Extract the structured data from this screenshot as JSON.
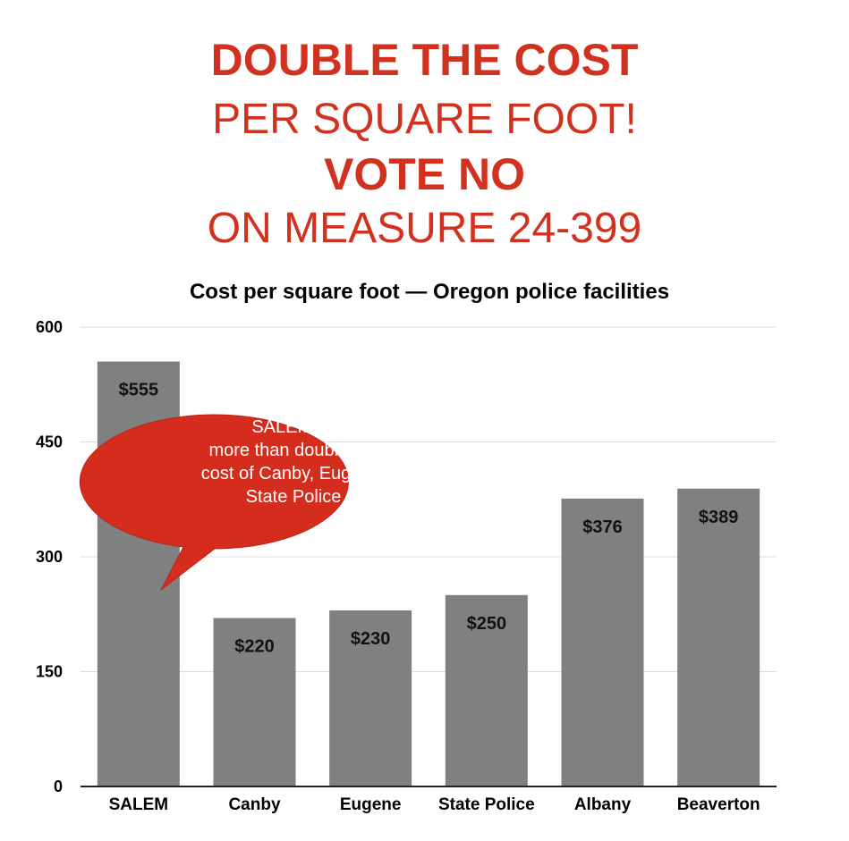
{
  "headline": {
    "line1": "DOUBLE THE COST",
    "line2": "PER SQUARE FOOT!",
    "line3": "VOTE NO",
    "line4": "ON MEASURE 24-399"
  },
  "callout": {
    "lines": [
      "SALEM —",
      "more than double the",
      "cost of Canby, Eugene,",
      "State Police"
    ]
  },
  "colors": {
    "headline": "#d1321f",
    "bar": "#7f8180",
    "callout": "#d42d1e",
    "gridline": "#dcdcdc"
  },
  "chart_data": {
    "type": "bar",
    "title": "Cost per square foot — Oregon police facilities",
    "categories": [
      "SALEM",
      "Canby",
      "Eugene",
      "State Police",
      "Albany",
      "Beaverton"
    ],
    "values": [
      555,
      220,
      230,
      250,
      376,
      389
    ],
    "data_labels": [
      "$555",
      "$220",
      "$230",
      "$250",
      "$376",
      "$389"
    ],
    "yticks": [
      0,
      150,
      300,
      450,
      600
    ],
    "ylim": [
      0,
      600
    ],
    "xlabel": "",
    "ylabel": "",
    "grid": true,
    "legend": "none"
  }
}
